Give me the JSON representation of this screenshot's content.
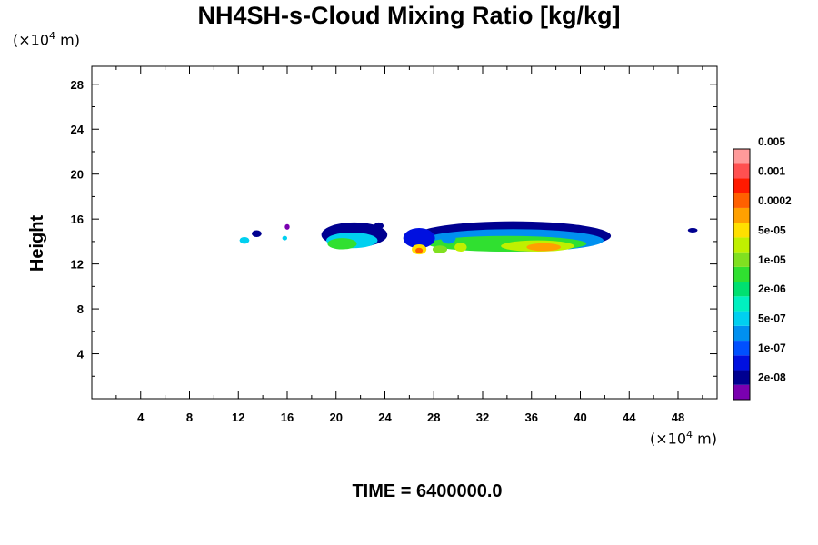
{
  "title": "NH4SH-s-Cloud Mixing Ratio [kg/kg]",
  "y_unit": {
    "prefix": "(×10",
    "exp": "4",
    "suffix": " m)"
  },
  "x_unit": {
    "prefix": "(×10",
    "exp": "4",
    "suffix": " m)"
  },
  "time_label": "TIME = 6400000.0",
  "chart_data": {
    "type": "heatmap",
    "title": "NH4SH-s-Cloud Mixing Ratio [kg/kg]",
    "xlabel": "",
    "ylabel": "Height",
    "x_unit_label": "(×10⁴ m)",
    "y_unit_label": "(×10⁴ m)",
    "xlim": [
      0,
      51.2
    ],
    "ylim": [
      0,
      29.6
    ],
    "xticks": [
      4,
      8,
      12,
      16,
      20,
      24,
      28,
      32,
      36,
      40,
      44,
      48
    ],
    "yticks": [
      4,
      8,
      12,
      16,
      20,
      24,
      28
    ],
    "colorbar": {
      "colors": [
        "#7a00b0",
        "#000090",
        "#0010e0",
        "#0050ff",
        "#0090f0",
        "#00d0f0",
        "#00f0c0",
        "#00e070",
        "#30e030",
        "#80e020",
        "#c0f000",
        "#ffe000",
        "#ffa000",
        "#ff6000",
        "#ff1a00",
        "#ff5050",
        "#ff9a9a"
      ],
      "labels": [
        "2e-08",
        "1e-07",
        "5e-07",
        "2e-06",
        "1e-05",
        "5e-05",
        "0.0002",
        "0.001",
        "0.005"
      ]
    },
    "cloud_regions": [
      {
        "x": 12.5,
        "y": 14.1,
        "rx": 0.4,
        "ry": 0.3,
        "level": 5
      },
      {
        "x": 13.5,
        "y": 14.7,
        "rx": 0.4,
        "ry": 0.3,
        "level": 1
      },
      {
        "x": 15.8,
        "y": 14.3,
        "rx": 0.2,
        "ry": 0.2,
        "level": 5
      },
      {
        "x": 16.0,
        "y": 15.3,
        "rx": 0.2,
        "ry": 0.25,
        "level": 0
      },
      {
        "x": 21.5,
        "y": 14.6,
        "rx": 2.7,
        "ry": 1.1,
        "level": 1
      },
      {
        "x": 21.3,
        "y": 14.1,
        "rx": 2.1,
        "ry": 0.7,
        "level": 5
      },
      {
        "x": 20.5,
        "y": 13.8,
        "rx": 1.2,
        "ry": 0.5,
        "level": 8
      },
      {
        "x": 23.5,
        "y": 15.4,
        "rx": 0.4,
        "ry": 0.3,
        "level": 1
      },
      {
        "x": 34.5,
        "y": 14.5,
        "rx": 8.0,
        "ry": 1.3,
        "level": 1
      },
      {
        "x": 34.5,
        "y": 14.1,
        "rx": 7.4,
        "ry": 1.0,
        "level": 4
      },
      {
        "x": 34.0,
        "y": 13.8,
        "rx": 6.5,
        "ry": 0.7,
        "level": 8
      },
      {
        "x": 36.5,
        "y": 13.6,
        "rx": 3.0,
        "ry": 0.5,
        "level": 10
      },
      {
        "x": 37.0,
        "y": 13.5,
        "rx": 1.4,
        "ry": 0.35,
        "level": 12
      },
      {
        "x": 26.8,
        "y": 14.3,
        "rx": 1.3,
        "ry": 0.9,
        "level": 2
      },
      {
        "x": 26.8,
        "y": 13.3,
        "rx": 0.6,
        "ry": 0.45,
        "level": 11
      },
      {
        "x": 26.8,
        "y": 13.2,
        "rx": 0.3,
        "ry": 0.25,
        "level": 13
      },
      {
        "x": 28.5,
        "y": 13.3,
        "rx": 0.6,
        "ry": 0.35,
        "level": 9
      },
      {
        "x": 29.2,
        "y": 14.3,
        "rx": 0.6,
        "ry": 0.5,
        "level": 4
      },
      {
        "x": 30.2,
        "y": 13.5,
        "rx": 0.5,
        "ry": 0.4,
        "level": 10
      },
      {
        "x": 49.2,
        "y": 15.0,
        "rx": 0.4,
        "ry": 0.2,
        "level": 1
      }
    ]
  }
}
